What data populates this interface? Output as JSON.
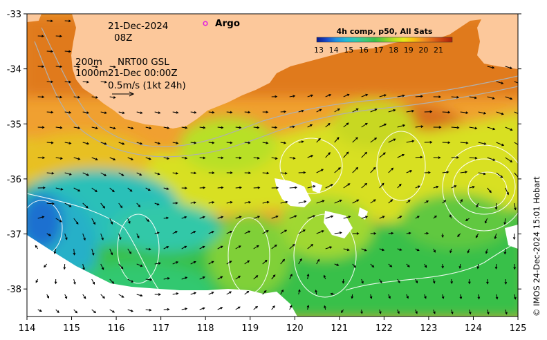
{
  "map": {
    "date": "21-Dec-2024",
    "time": "08Z",
    "legend_marker_label": "Argo",
    "legend_marker_color": "#e020e0",
    "depth_labels": [
      "200m",
      "1000m"
    ],
    "product_line1": "NRT00 GSL",
    "product_line2": "21-Dec 00:00Z",
    "vector_scale_label": "0.5m/s (1kt 24h)",
    "credit": "© IMOS 24-Dec-2024 15:01 Hobart",
    "land_color": "#fcc89b",
    "x_ticks": [
      "114",
      "115",
      "116",
      "117",
      "118",
      "119",
      "120",
      "121",
      "122",
      "123",
      "124",
      "125"
    ],
    "y_ticks": [
      "-33",
      "-34",
      "-35",
      "-36",
      "-37",
      "-38"
    ],
    "lon_range": [
      114,
      125
    ],
    "lat_range": [
      -38.5,
      -33
    ]
  },
  "colorbar": {
    "title": "4h comp, p50, All Sats",
    "ticks": [
      "13",
      "14",
      "15",
      "16",
      "17",
      "18",
      "19",
      "20",
      "21"
    ],
    "colors": [
      "#0a1a8c",
      "#1848c8",
      "#1f8fe0",
      "#22b8d8",
      "#2ec8b0",
      "#3ec878",
      "#3cc04a",
      "#78d030",
      "#b8e020",
      "#e8e818",
      "#f8c010",
      "#f09020",
      "#e06818",
      "#c84010",
      "#a82008"
    ]
  }
}
